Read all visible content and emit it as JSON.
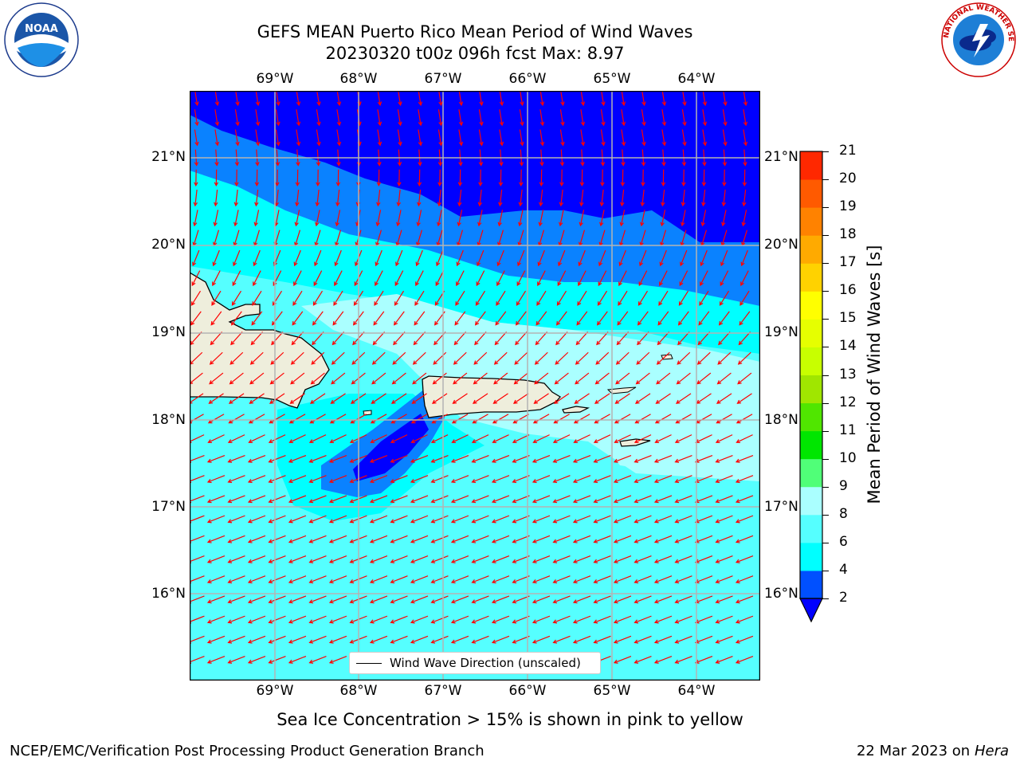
{
  "title_line1": "GEFS MEAN Puerto Rico Mean Period of Wind Waves",
  "title_line2": "20230320 t00z 096h fcst   Max: 8.97",
  "lon_labels": [
    "69°W",
    "68°W",
    "67°W",
    "66°W",
    "65°W",
    "64°W"
  ],
  "lat_labels": [
    "21°N",
    "20°N",
    "19°N",
    "18°N",
    "17°N",
    "16°N"
  ],
  "legend_text": "Wind Wave Direction (unscaled)",
  "colorbar": {
    "label": "Mean Period of Wind Waves [s]",
    "ticks": [
      "2",
      "4",
      "6",
      "8",
      "9",
      "10",
      "11",
      "12",
      "13",
      "14",
      "15",
      "16",
      "17",
      "18",
      "19",
      "20",
      "21"
    ],
    "colors": [
      "#0050ff",
      "#00ffff",
      "#55ffff",
      "#aaffff",
      "#50ff78",
      "#00e600",
      "#50e600",
      "#a0e600",
      "#c8ff00",
      "#e6ff00",
      "#ffff00",
      "#ffd200",
      "#ffaa00",
      "#ff8200",
      "#ff5a00",
      "#ff2800",
      "#ff0000"
    ],
    "under_color": "#0000ff"
  },
  "map_colors": {
    "deep": "#0000ff",
    "mid": "#0a82ff",
    "cyan": "#00ffff",
    "light_cyan": "#55ffff",
    "pale": "#aaffff",
    "land": "#eeeedc",
    "arrow": "#ff0000",
    "grid": "#b4b4b4"
  },
  "sea_ice_note": "Sea Ice Concentration > 15% is shown in pink to yellow",
  "footer_left": "NCEP/EMC/Verification Post Processing Product Generation Branch",
  "footer_date": "22 Mar 2023 on",
  "footer_host": "Hera",
  "logos": {
    "noaa": "NOAA",
    "nws": "NATIONAL WEATHER SERVICE"
  }
}
